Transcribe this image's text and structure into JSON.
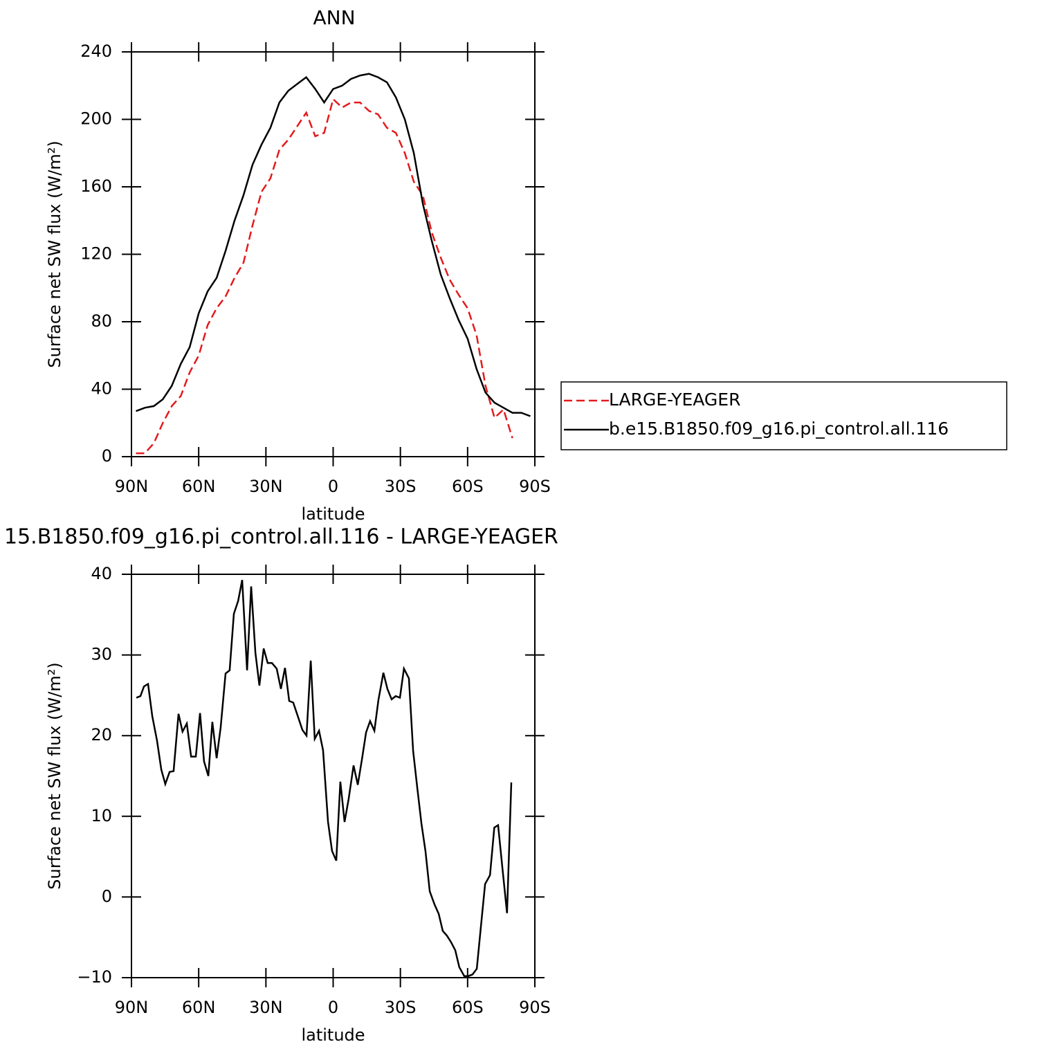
{
  "chart_data": [
    {
      "type": "line",
      "title": "ANN",
      "xlabel": "latitude",
      "ylabel": "Surface net SW flux (W/m²)",
      "xlim": [
        90,
        -90
      ],
      "ylim": [
        0,
        240
      ],
      "xticks": [
        {
          "value": 90,
          "label": "90N"
        },
        {
          "value": 60,
          "label": "60N"
        },
        {
          "value": 30,
          "label": "30N"
        },
        0,
        {
          "value": -30,
          "label": "30S"
        },
        {
          "value": -60,
          "label": "60S"
        },
        {
          "value": -90,
          "label": "90S"
        }
      ],
      "yticks": [
        0,
        40,
        80,
        120,
        160,
        200,
        240
      ],
      "legend": "right",
      "x": [
        88,
        84,
        80,
        76,
        72,
        68,
        64,
        60,
        56,
        52,
        48,
        44,
        40,
        36,
        32,
        28,
        24,
        20,
        16,
        12,
        8,
        4,
        0,
        -4,
        -8,
        -12,
        -16,
        -20,
        -24,
        -28,
        -32,
        -36,
        -40,
        -44,
        -48,
        -52,
        -56,
        -60,
        -64,
        -68,
        -72,
        -76,
        -80,
        -84,
        -88
      ],
      "series": [
        {
          "name": "LARGE-YEAGER",
          "color": "#e41a1c",
          "dash": true,
          "values": [
            2,
            2,
            8,
            20,
            30,
            36,
            50,
            60,
            78,
            88,
            95,
            106,
            115,
            137,
            157,
            165,
            182,
            188,
            196,
            204,
            190,
            192,
            212,
            207,
            210,
            210,
            205,
            203,
            195,
            192,
            180,
            163,
            155,
            133,
            118,
            105,
            96,
            88,
            72,
            42,
            23,
            28,
            11,
            null,
            null
          ]
        },
        {
          "name": "b.e15.B1850.f09_g16.pi_control.all.116",
          "color": "#000000",
          "values": [
            27,
            29,
            30,
            34,
            42,
            55,
            65,
            85,
            98,
            106,
            122,
            140,
            155,
            173,
            185,
            195,
            210,
            217,
            221,
            225,
            218,
            210,
            218,
            220,
            224,
            226,
            227,
            225,
            222,
            213,
            200,
            180,
            150,
            128,
            108,
            94,
            81,
            70,
            52,
            38,
            32,
            29,
            26,
            26,
            24
          ]
        }
      ]
    },
    {
      "type": "line",
      "title": "15.B1850.f09_g16.pi_control.all.116 - LARGE-YEAGER",
      "xlabel": "latitude",
      "ylabel": "Surface net SW flux (W/m²)",
      "xlim": [
        90,
        -90
      ],
      "ylim": [
        -10,
        40
      ],
      "xticks": [
        {
          "value": 90,
          "label": "90N"
        },
        {
          "value": 60,
          "label": "60N"
        },
        {
          "value": 30,
          "label": "30N"
        },
        0,
        {
          "value": -30,
          "label": "30S"
        },
        {
          "value": -60,
          "label": "60S"
        },
        {
          "value": -90,
          "label": "90S"
        }
      ],
      "yticks": [
        {
          "value": -10,
          "label": "−10"
        },
        0,
        10,
        20,
        30,
        40
      ],
      "x": [
        87.8,
        86,
        84.4,
        82.6,
        80.7,
        78.6,
        76.7,
        74.9,
        73,
        71.2,
        69,
        67.2,
        65.3,
        63.4,
        61.3,
        59.4,
        57.6,
        55.7,
        53.9,
        52,
        50.2,
        48,
        46.2,
        44.3,
        42.4,
        40.6,
        38.4,
        36.6,
        34.7,
        32.9,
        31,
        29.2,
        27.3,
        25.2,
        23.3,
        21.5,
        19.6,
        17.8,
        13.7,
        11.9,
        10,
        8.2,
        6.3,
        4.5,
        2.3,
        0.5,
        -1.4,
        -3.2,
        -5.1,
        -6.9,
        -9.1,
        -11,
        -12.8,
        -14.7,
        -16.5,
        -18.4,
        -20.2,
        -22.4,
        -24.2,
        -26.1,
        -27.9,
        -29.8,
        -31.6,
        -33.8,
        -35.7,
        -37.5,
        -39.4,
        -41.2,
        -43.1,
        -45.2,
        -47.1,
        -48.9,
        -50.8,
        -52.6,
        -54.5,
        -56.3,
        -58.5,
        -60.4,
        -62.2,
        -64.1,
        -65.9,
        -67.8,
        -70,
        -71.9,
        -73.6,
        -75.5,
        -77.6,
        -79.5
      ],
      "series": [
        {
          "color": "#000000",
          "values": [
            24.7,
            24.9,
            26.1,
            26.4,
            22.4,
            19.4,
            15.8,
            14.0,
            15.5,
            15.6,
            22.7,
            20.5,
            21.5,
            17.4,
            17.4,
            22.8,
            16.8,
            15.0,
            21.7,
            17.2,
            21.0,
            27.7,
            28.1,
            35.1,
            36.7,
            39.3,
            28.1,
            38.5,
            30.3,
            26.2,
            30.8,
            29.0,
            29.0,
            28.3,
            25.8,
            28.4,
            24.3,
            24.1,
            20.7,
            20.0,
            29.3,
            19.6,
            20.6,
            18.2,
            9.3,
            5.7,
            4.5,
            14.3,
            9.3,
            12.1,
            16.3,
            13.9,
            17.0,
            20.4,
            21.8,
            20.6,
            24.4,
            27.8,
            25.8,
            24.5,
            24.9,
            24.7,
            28.3,
            27.1,
            18.1,
            13.6,
            9.1,
            5.7,
            0.7,
            -0.9,
            -2.1,
            -4.2,
            -4.8,
            -5.6,
            -6.6,
            -8.7,
            -9.8,
            -9.8,
            -9.6,
            -8.9,
            -3.8,
            1.6,
            2.7,
            8.6,
            8.9,
            3.7,
            -2.0,
            14.2
          ]
        }
      ]
    }
  ]
}
